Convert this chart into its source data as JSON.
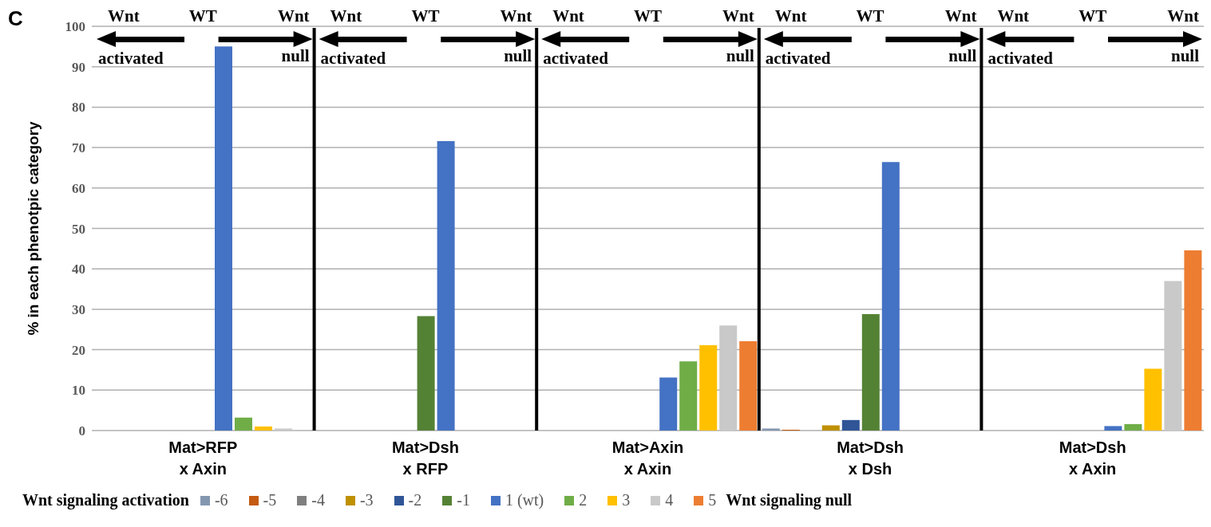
{
  "chart_data": {
    "type": "bar",
    "ylabel": "% in each phenotpic category",
    "annotations": [
      "C",
      "Wnt",
      "WT",
      "Wnt",
      "activated",
      "null",
      "Wnt signaling activation",
      "Wnt signaling null"
    ],
    "categories": [
      "Mat>RFP x Axin",
      "Mat>Dsh x RFP",
      "Mat>Axin x Axin",
      "Mat>Dsh x Dsh",
      "Mat>Dsh x Axin"
    ],
    "series": [
      {
        "name": "-6",
        "color": "#8497b0",
        "values": [
          0,
          0,
          0,
          0.5,
          0
        ]
      },
      {
        "name": "-5",
        "color": "#c55a11",
        "values": [
          0,
          0,
          0,
          0.2,
          0
        ]
      },
      {
        "name": "-4",
        "color": "#7f7f7f",
        "values": [
          0,
          0,
          0,
          0,
          0
        ]
      },
      {
        "name": "-3",
        "color": "#bf9000",
        "values": [
          0,
          0,
          0,
          1.3,
          0
        ]
      },
      {
        "name": "-2",
        "color": "#2f5597",
        "values": [
          0,
          0,
          0,
          2.6,
          0
        ]
      },
      {
        "name": "-1",
        "color": "#548235",
        "values": [
          0,
          28.3,
          0,
          28.8,
          0
        ]
      },
      {
        "name": "1 (wt)",
        "color": "#4472c4",
        "values": [
          95,
          71.6,
          13.1,
          66.4,
          1.1
        ]
      },
      {
        "name": "2",
        "color": "#70ad47",
        "values": [
          3.2,
          0,
          17.1,
          0,
          1.6
        ]
      },
      {
        "name": "3",
        "color": "#ffc000",
        "values": [
          1,
          0,
          21.1,
          0,
          15.3
        ]
      },
      {
        "name": "4",
        "color": "#c9c9c9",
        "values": [
          0.5,
          0,
          26,
          0,
          37
        ]
      },
      {
        "name": "5",
        "color": "#ed7d31",
        "values": [
          0,
          0,
          22.1,
          0,
          44.6
        ]
      }
    ],
    "ylim": [
      0,
      100
    ],
    "yticks": [
      0,
      10,
      20,
      30,
      40,
      50,
      60,
      70,
      80,
      90,
      100
    ],
    "grid": "y",
    "legend": "bottom"
  }
}
